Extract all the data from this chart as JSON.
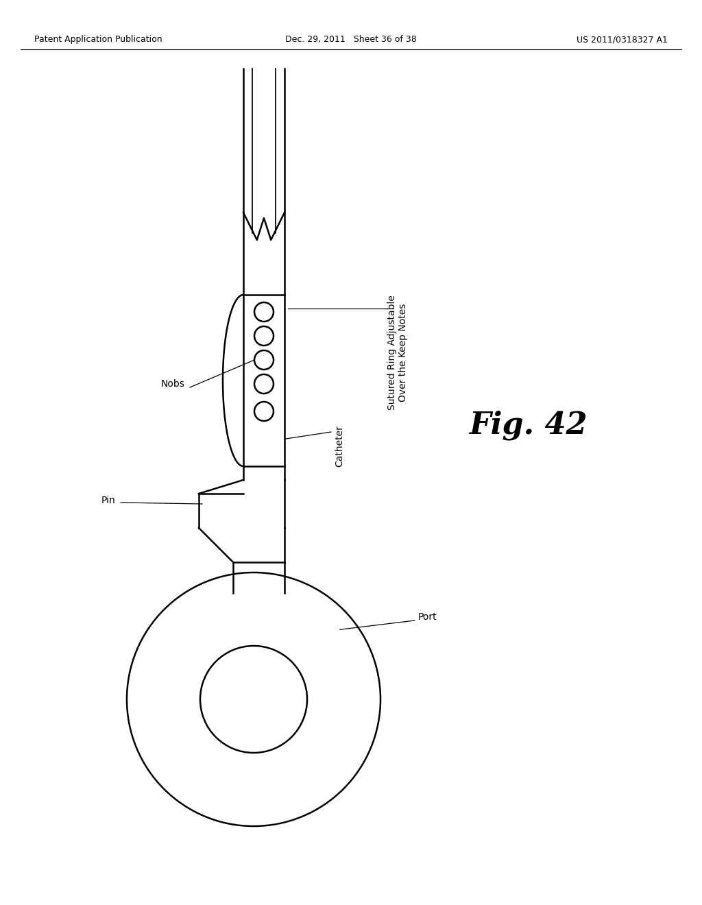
{
  "bg_color": "#ffffff",
  "line_color": "#000000",
  "header_left": "Patent Application Publication",
  "header_mid": "Dec. 29, 2011   Sheet 36 of 38",
  "header_right": "US 2011/0318327 A1",
  "fig_label": "Fig. 42",
  "labels": {
    "sutured_ring": "Sutured Ring Adjustable\nOver the Keep Notes",
    "nobs": "Nobs",
    "catheter": "Catheter",
    "pin": "Pin",
    "port": "Port"
  }
}
